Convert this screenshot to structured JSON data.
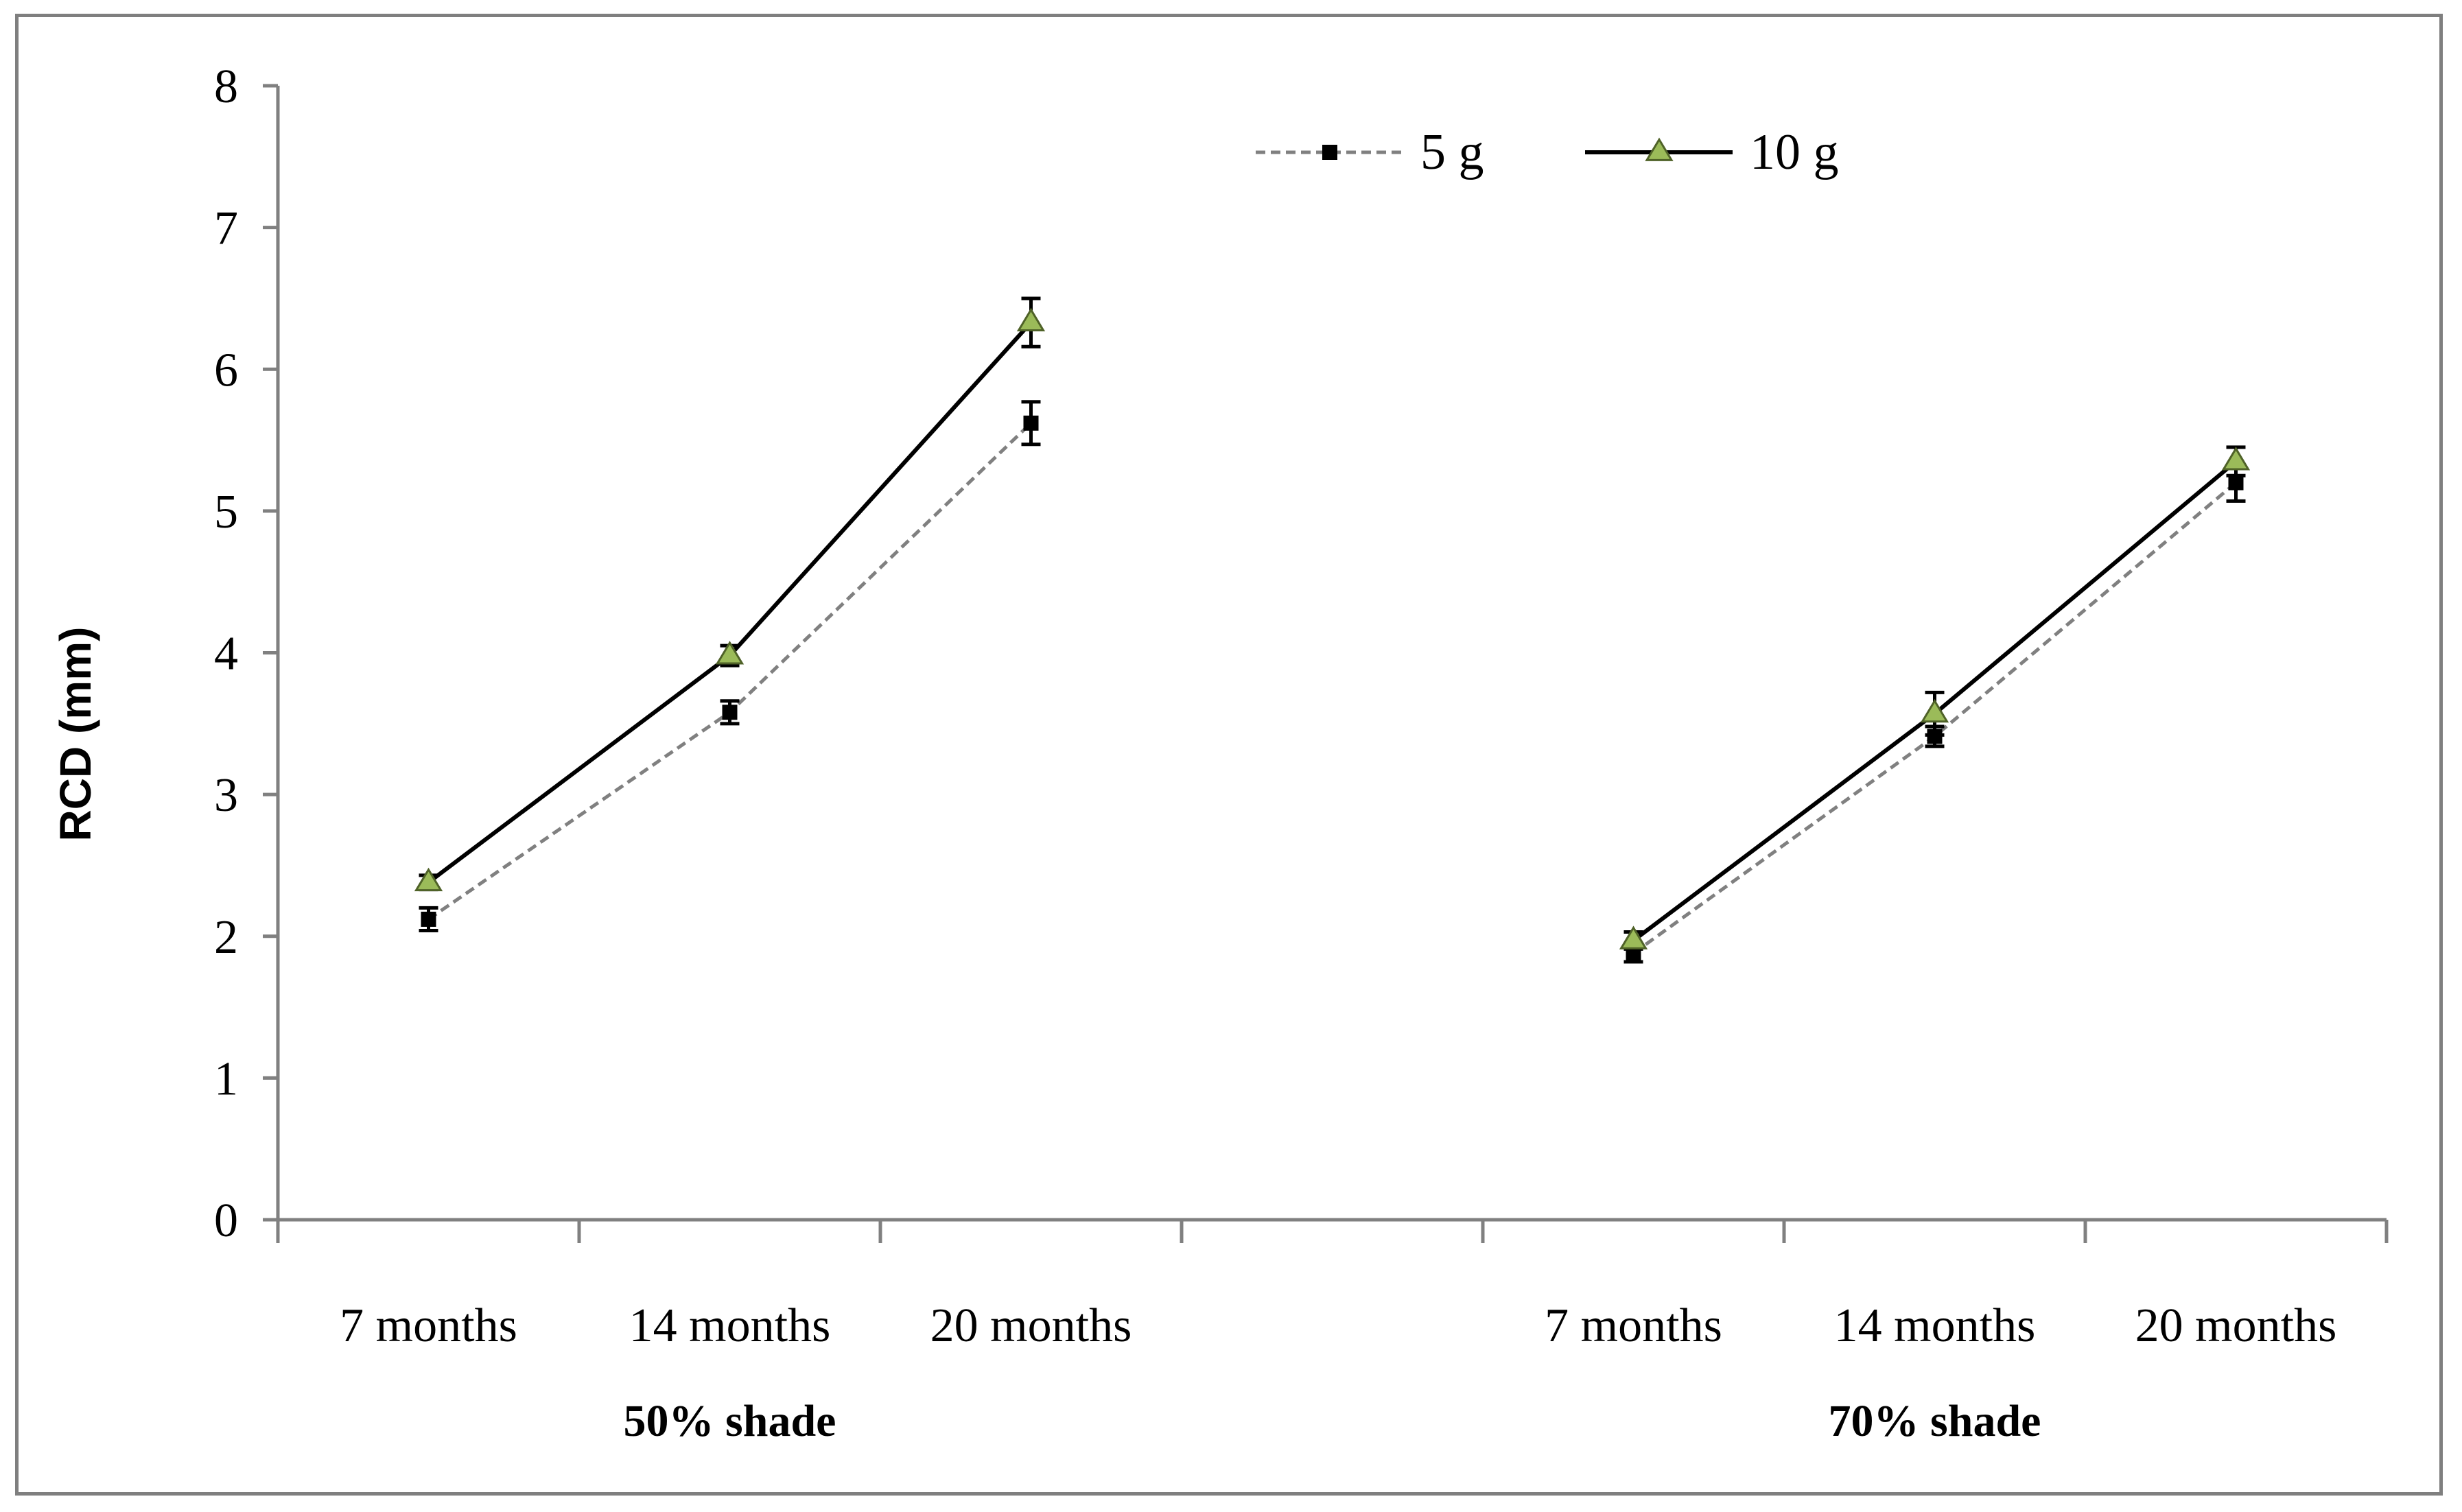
{
  "chart_data": {
    "type": "line",
    "ylabel": "RCD  (mm)",
    "ylim": [
      0,
      8
    ],
    "yticks": [
      "0",
      "1",
      "2",
      "3",
      "4",
      "5",
      "6",
      "7",
      "8"
    ],
    "grid": false,
    "legend_position": "top-right",
    "groups": [
      {
        "label": "50% shade",
        "categories": [
          "7 months",
          "14 months",
          "20 months"
        ]
      },
      {
        "label": "70% shade",
        "categories": [
          "7 months",
          "14 months",
          "20 months"
        ]
      }
    ],
    "series": [
      {
        "name": "5 g",
        "color": "#808080",
        "marker": "square",
        "values": [
          [
            2.12,
            3.58,
            5.62
          ],
          [
            1.88,
            3.41,
            5.2
          ]
        ],
        "errors": [
          [
            0.08,
            0.08,
            0.15
          ],
          [
            0.06,
            0.07,
            0.13
          ]
        ]
      },
      {
        "name": "10 g",
        "color": "#000000",
        "marker": "triangle",
        "marker_color": "#9bbb59",
        "values": [
          [
            2.38,
            3.98,
            6.33
          ],
          [
            1.97,
            3.57,
            5.35
          ]
        ],
        "errors": [
          [
            0.05,
            0.07,
            0.17
          ],
          [
            0.06,
            0.15,
            0.1
          ]
        ]
      }
    ]
  }
}
